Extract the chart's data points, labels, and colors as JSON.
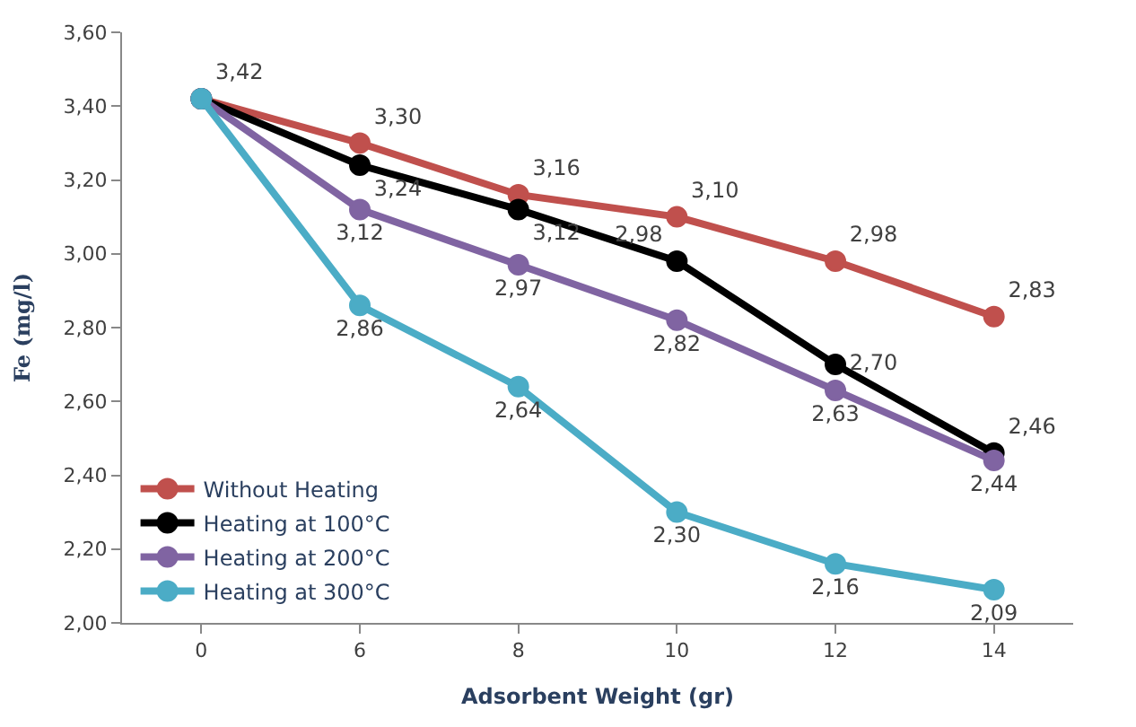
{
  "chart_data": {
    "type": "line",
    "xlabel": "Adsorbent Weight (gr)",
    "ylabel": "Fe (mg/l)",
    "categories": [
      "0",
      "6",
      "8",
      "10",
      "12",
      "14"
    ],
    "ylim": [
      2.0,
      3.6
    ],
    "yticks": [
      {
        "value": 2.0,
        "label": "2,00"
      },
      {
        "value": 2.2,
        "label": "2,20"
      },
      {
        "value": 2.4,
        "label": "2,40"
      },
      {
        "value": 2.6,
        "label": "2,60"
      },
      {
        "value": 2.8,
        "label": "2,80"
      },
      {
        "value": 3.0,
        "label": "3,00"
      },
      {
        "value": 3.2,
        "label": "3,20"
      },
      {
        "value": 3.4,
        "label": "3,40"
      },
      {
        "value": 3.6,
        "label": "3,60"
      }
    ],
    "legend": "bottom left",
    "marker": "circle",
    "line_style": "solid",
    "series": [
      {
        "name": "Without Heating",
        "color": "#c0504d",
        "values": [
          3.42,
          3.3,
          3.16,
          3.1,
          2.98,
          2.83
        ],
        "value_labels": [
          "3,42",
          "3,30",
          "3,16",
          "3,10",
          "2,98",
          "2,83"
        ]
      },
      {
        "name": "Heating at 100°C",
        "color": "#000000",
        "values": [
          3.42,
          3.24,
          3.12,
          2.98,
          2.7,
          2.46
        ],
        "value_labels": [
          null,
          "3,24",
          "3,12",
          "2,98",
          "2,70",
          "2,46"
        ]
      },
      {
        "name": "Heating at 200°C",
        "color": "#8064a2",
        "values": [
          3.42,
          3.12,
          2.97,
          2.82,
          2.63,
          2.44
        ],
        "value_labels": [
          null,
          "3,12",
          "2,97",
          "2,82",
          "2,63",
          "2,44"
        ]
      },
      {
        "name": "Heating at 300°C",
        "color": "#4bacc6",
        "values": [
          3.42,
          2.86,
          2.64,
          2.3,
          2.16,
          2.09
        ],
        "value_labels": [
          null,
          "2,86",
          "2,64",
          "2,30",
          "2,16",
          "2,09"
        ]
      }
    ]
  }
}
